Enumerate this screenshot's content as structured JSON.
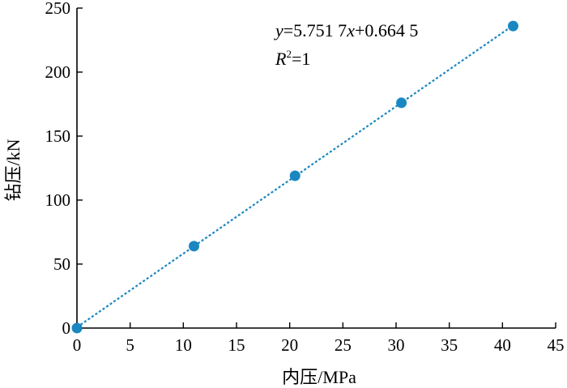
{
  "chart_data": {
    "type": "scatter",
    "xlabel": "内压/MPa",
    "ylabel": "钻压/kN",
    "xlim": [
      0,
      45
    ],
    "ylim": [
      0,
      250
    ],
    "x_ticks": [
      "0",
      "5",
      "10",
      "15",
      "20",
      "25",
      "30",
      "35",
      "40",
      "45"
    ],
    "y_ticks": [
      "0",
      "50",
      "100",
      "150",
      "200",
      "250"
    ],
    "grid": false,
    "series": [
      {
        "points": [
          {
            "x": 0,
            "y": 0
          },
          {
            "x": 11,
            "y": 64
          },
          {
            "x": 20.5,
            "y": 119
          },
          {
            "x": 30.5,
            "y": 176
          },
          {
            "x": 41,
            "y": 236
          }
        ],
        "color": "#1a87c0"
      }
    ],
    "trendline": {
      "slope": 5.7517,
      "intercept": 0.6645,
      "style": "dotted",
      "color": "#1a87c0",
      "x_range": [
        0,
        41
      ]
    },
    "annotation": {
      "equation_y": "y",
      "equation_rest": "=5.751 7",
      "equation_x": "x",
      "equation_tail": "+0.664 5",
      "r2_letter": "R",
      "r2_power": "2",
      "r2_value": "=1"
    }
  }
}
